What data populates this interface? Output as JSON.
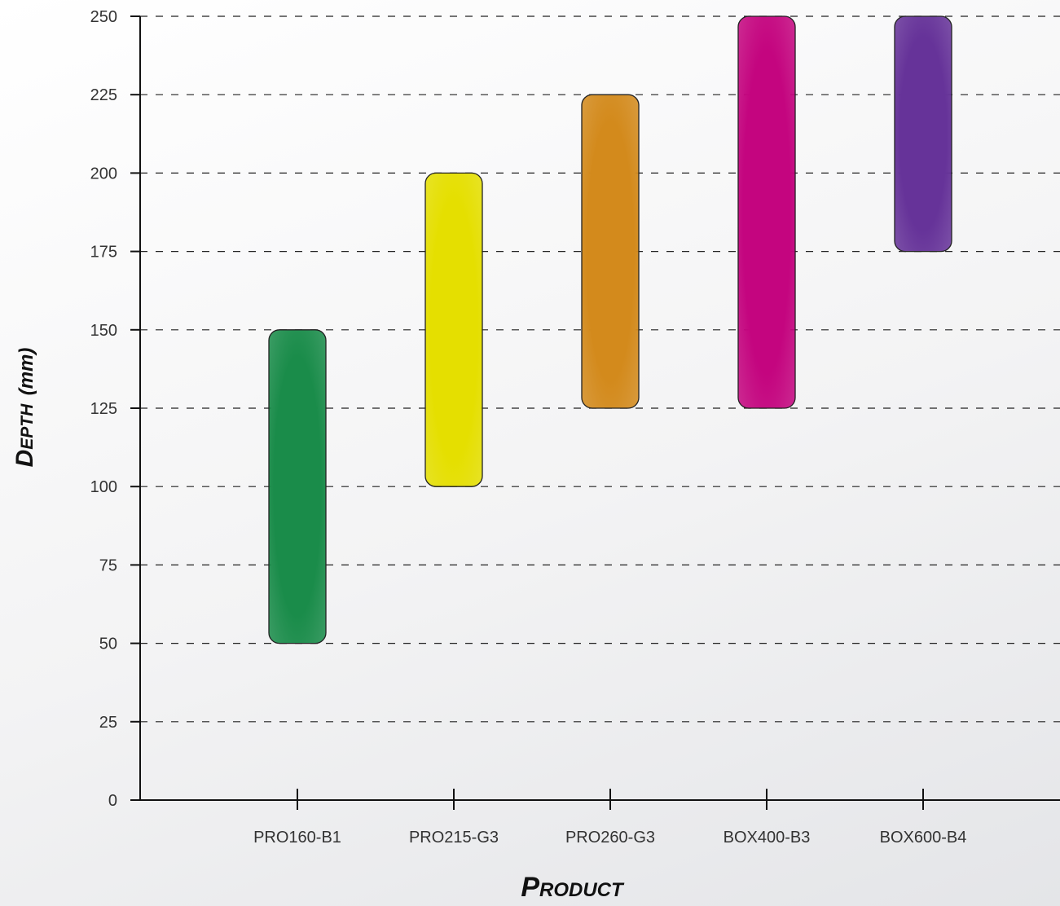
{
  "chart_data": {
    "type": "bar",
    "subtype": "floating-range",
    "categories": [
      "PRO160-B1",
      "PRO215-G3",
      "PRO260-G3",
      "BOX400-B3",
      "BOX600-B4"
    ],
    "series": [
      {
        "low": [
          50,
          100,
          125,
          125,
          175
        ],
        "high": [
          150,
          200,
          225,
          250,
          250
        ]
      }
    ],
    "colors": [
      "#1a8c4a",
      "#e5df00",
      "#d38a1c",
      "#c4057f",
      "#663399"
    ],
    "xlabel": "Product",
    "ylabel_main": "Depth",
    "ylabel_unit": "(mm)",
    "ylim": [
      0,
      250
    ],
    "yticks": [
      0,
      25,
      50,
      75,
      100,
      125,
      150,
      175,
      200,
      225,
      250
    ],
    "grid": "horizontal-dashed",
    "legend": "none"
  }
}
